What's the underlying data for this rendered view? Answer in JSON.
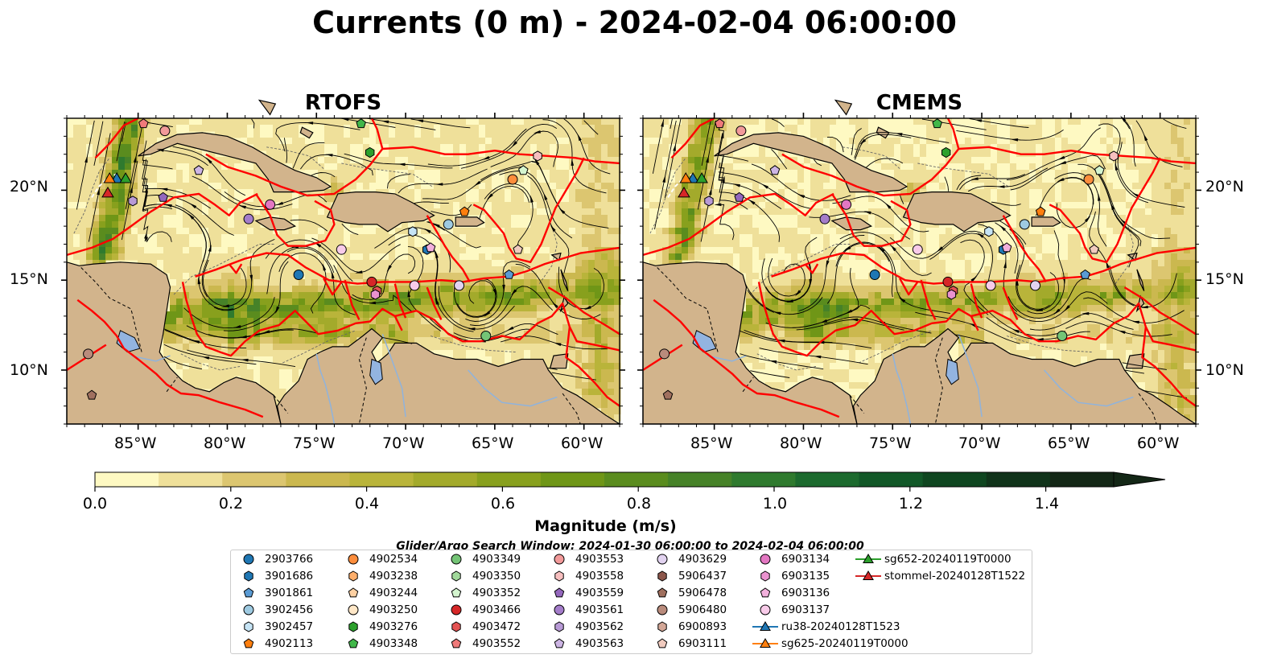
{
  "title": "Currents (0 m) - 2024-02-04 06:00:00",
  "panels": [
    {
      "title": "RTOFS",
      "variant": 0
    },
    {
      "title": "CMEMS",
      "variant": 1
    }
  ],
  "map": {
    "lon_range": [
      -89,
      -58
    ],
    "lat_range": [
      7,
      24
    ],
    "lon_ticks": [
      "85°W",
      "80°W",
      "75°W",
      "70°W",
      "65°W",
      "60°W"
    ],
    "lon_tick_values": [
      -85,
      -80,
      -75,
      -70,
      -65,
      -60
    ],
    "lat_ticks": [
      "20°N",
      "15°N",
      "10°N"
    ],
    "lat_tick_values": [
      20,
      15,
      10
    ],
    "land_color": "#d2b48c",
    "ocean_low_color": "#fff8c0",
    "boundary_color": "#ff0000"
  },
  "colorbar": {
    "label": "Magnitude (m/s)",
    "min": 0.0,
    "max": 1.5,
    "ticks": [
      "0.0",
      "0.2",
      "0.4",
      "0.6",
      "0.8",
      "1.0",
      "1.2",
      "1.4"
    ],
    "tick_values": [
      0.0,
      0.2,
      0.4,
      0.6,
      0.8,
      1.0,
      1.2,
      1.4
    ],
    "colors": [
      "#fef9c2",
      "#efe09a",
      "#dcc670",
      "#cbb84f",
      "#b9b43a",
      "#a3aa2b",
      "#88a01d",
      "#6f9617",
      "#5a8c1e",
      "#468228",
      "#2f7a2e",
      "#1c6a2e",
      "#125828",
      "#0f4620",
      "#10331a",
      "#132716"
    ],
    "extend": "max"
  },
  "search_window": "Glider/Argo Search Window: 2024-01-30 06:00:00 to 2024-02-04 06:00:00",
  "legend": [
    {
      "label": "2903766",
      "marker": "circle",
      "color": "#1f77b4"
    },
    {
      "label": "3901686",
      "marker": "hexagon",
      "color": "#1f77b4"
    },
    {
      "label": "3901861",
      "marker": "pentagon",
      "color": "#5a9bd4"
    },
    {
      "label": "3902456",
      "marker": "circle",
      "color": "#9ecae1"
    },
    {
      "label": "3902457",
      "marker": "hexagon",
      "color": "#c6e4f5"
    },
    {
      "label": "4902113",
      "marker": "pentagon",
      "color": "#ff7f0e"
    },
    {
      "label": "4902534",
      "marker": "circle",
      "color": "#fd8d3c"
    },
    {
      "label": "4903238",
      "marker": "hexagon",
      "color": "#fdae6b"
    },
    {
      "label": "4903244",
      "marker": "pentagon",
      "color": "#fdd0a2"
    },
    {
      "label": "4903250",
      "marker": "circle",
      "color": "#ffe7c7"
    },
    {
      "label": "4903276",
      "marker": "hexagon",
      "color": "#2ca02c"
    },
    {
      "label": "4903348",
      "marker": "pentagon",
      "color": "#41b749"
    },
    {
      "label": "4903349",
      "marker": "circle",
      "color": "#74c476"
    },
    {
      "label": "4903350",
      "marker": "hexagon",
      "color": "#a1d99b"
    },
    {
      "label": "4903352",
      "marker": "pentagon",
      "color": "#d4f5cf"
    },
    {
      "label": "4903466",
      "marker": "circle",
      "color": "#d62728"
    },
    {
      "label": "4903472",
      "marker": "hexagon",
      "color": "#e45353"
    },
    {
      "label": "4903552",
      "marker": "pentagon",
      "color": "#f07a7a"
    },
    {
      "label": "4903553",
      "marker": "circle",
      "color": "#f29a9a"
    },
    {
      "label": "4903558",
      "marker": "hexagon",
      "color": "#f7bfbf"
    },
    {
      "label": "4903559",
      "marker": "pentagon",
      "color": "#9467bd"
    },
    {
      "label": "4903561",
      "marker": "circle",
      "color": "#a47dca"
    },
    {
      "label": "4903562",
      "marker": "hexagon",
      "color": "#b89ad6"
    },
    {
      "label": "4903563",
      "marker": "pentagon",
      "color": "#cdb5e4"
    },
    {
      "label": "4903629",
      "marker": "circle",
      "color": "#e2d3f0"
    },
    {
      "label": "5906437",
      "marker": "hexagon",
      "color": "#8c564b"
    },
    {
      "label": "5906478",
      "marker": "pentagon",
      "color": "#a0705f"
    },
    {
      "label": "5906480",
      "marker": "circle",
      "color": "#b98b7c"
    },
    {
      "label": "6900893",
      "marker": "hexagon",
      "color": "#d3a797"
    },
    {
      "label": "6903111",
      "marker": "pentagon",
      "color": "#f1cbbf"
    },
    {
      "label": "6903134",
      "marker": "circle",
      "color": "#e377c2"
    },
    {
      "label": "6903135",
      "marker": "hexagon",
      "color": "#ea92cf"
    },
    {
      "label": "6903136",
      "marker": "pentagon",
      "color": "#f2b0dc"
    },
    {
      "label": "6903137",
      "marker": "circle",
      "color": "#f8cbe9"
    },
    {
      "label": "ru38-20240128T1523",
      "marker": "triangle-line",
      "color": "#1f77b4"
    },
    {
      "label": "sg625-20240119T0000",
      "marker": "triangle-line",
      "color": "#ff7f0e"
    },
    {
      "label": "sg652-20240119T0000",
      "marker": "triangle-line",
      "color": "#2ca02c"
    },
    {
      "label": "stommel-20240128T1522",
      "marker": "triangle-line",
      "color": "#d62728"
    }
  ],
  "floats": [
    {
      "id": "2903766",
      "lon": -76.0,
      "lat": 15.3,
      "color": "#1f77b4",
      "marker": "circle"
    },
    {
      "id": "3901686",
      "lon": -68.8,
      "lat": 16.7,
      "color": "#1f77b4",
      "marker": "hexagon"
    },
    {
      "id": "3901861",
      "lon": -64.2,
      "lat": 15.3,
      "color": "#5a9bd4",
      "marker": "pentagon"
    },
    {
      "id": "3902456",
      "lon": -67.6,
      "lat": 18.1,
      "color": "#9ecae1",
      "marker": "circle"
    },
    {
      "id": "3902457",
      "lon": -69.6,
      "lat": 17.7,
      "color": "#c6e4f5",
      "marker": "hexagon"
    },
    {
      "id": "4902113",
      "lon": -66.7,
      "lat": 18.8,
      "color": "#ff7f0e",
      "marker": "pentagon"
    },
    {
      "id": "4902534",
      "lon": -64.0,
      "lat": 20.6,
      "color": "#fd8d3c",
      "marker": "circle"
    },
    {
      "id": "4903276",
      "lon": -72.0,
      "lat": 22.1,
      "color": "#2ca02c",
      "marker": "hexagon"
    },
    {
      "id": "4903348",
      "lon": -72.5,
      "lat": 23.7,
      "color": "#41b749",
      "marker": "pentagon"
    },
    {
      "id": "4903349",
      "lon": -65.5,
      "lat": 11.9,
      "color": "#74c476",
      "marker": "circle"
    },
    {
      "id": "4903352",
      "lon": -63.4,
      "lat": 21.1,
      "color": "#d4f5cf",
      "marker": "pentagon"
    },
    {
      "id": "4903466",
      "lon": -71.9,
      "lat": 14.9,
      "color": "#d62728",
      "marker": "circle"
    },
    {
      "id": "4903472",
      "lon": -71.6,
      "lat": 14.4,
      "color": "#e45353",
      "marker": "hexagon"
    },
    {
      "id": "4903552",
      "lon": -84.7,
      "lat": 23.7,
      "color": "#f07a7a",
      "marker": "pentagon"
    },
    {
      "id": "4903553",
      "lon": -83.5,
      "lat": 23.3,
      "color": "#f29a9a",
      "marker": "circle"
    },
    {
      "id": "4903558",
      "lon": -62.6,
      "lat": 21.9,
      "color": "#f7bfbf",
      "marker": "hexagon"
    },
    {
      "id": "4903559",
      "lon": -83.6,
      "lat": 19.6,
      "color": "#9467bd",
      "marker": "pentagon"
    },
    {
      "id": "4903561",
      "lon": -78.8,
      "lat": 18.4,
      "color": "#a47dca",
      "marker": "circle"
    },
    {
      "id": "4903562",
      "lon": -85.3,
      "lat": 19.4,
      "color": "#b89ad6",
      "marker": "hexagon"
    },
    {
      "id": "4903563",
      "lon": -81.6,
      "lat": 21.1,
      "color": "#cdb5e4",
      "marker": "pentagon"
    },
    {
      "id": "4903629",
      "lon": -67.0,
      "lat": 14.7,
      "color": "#e2d3f0",
      "marker": "circle"
    },
    {
      "id": "5906478",
      "lon": -87.6,
      "lat": 8.6,
      "color": "#a0705f",
      "marker": "pentagon"
    },
    {
      "id": "5906480",
      "lon": -87.8,
      "lat": 10.9,
      "color": "#b98b7c",
      "marker": "circle"
    },
    {
      "id": "6903111",
      "lon": -63.7,
      "lat": 16.7,
      "color": "#f1cbbf",
      "marker": "pentagon"
    },
    {
      "id": "6903134",
      "lon": -77.6,
      "lat": 19.2,
      "color": "#e377c2",
      "marker": "circle"
    },
    {
      "id": "6903135",
      "lon": -71.7,
      "lat": 14.2,
      "color": "#ea92cf",
      "marker": "hexagon"
    },
    {
      "id": "6903136",
      "lon": -68.6,
      "lat": 16.8,
      "color": "#f2b0dc",
      "marker": "pentagon"
    },
    {
      "id": "6903137",
      "lon": -69.5,
      "lat": 14.7,
      "color": "#f8cbe9",
      "marker": "circle"
    },
    {
      "id": "6903137b",
      "lon": -73.6,
      "lat": 16.7,
      "color": "#f8cbe9",
      "marker": "circle"
    }
  ],
  "gliders": [
    {
      "id": "ru38-20240128T1523",
      "lon": -86.2,
      "lat": 20.6,
      "color": "#1f77b4"
    },
    {
      "id": "sg625-20240119T0000",
      "lon": -86.6,
      "lat": 20.6,
      "color": "#ff7f0e"
    },
    {
      "id": "sg652-20240119T0000",
      "lon": -85.7,
      "lat": 20.6,
      "color": "#2ca02c"
    },
    {
      "id": "stommel-20240128T1522",
      "lon": -86.7,
      "lat": 19.8,
      "color": "#d62728"
    }
  ]
}
